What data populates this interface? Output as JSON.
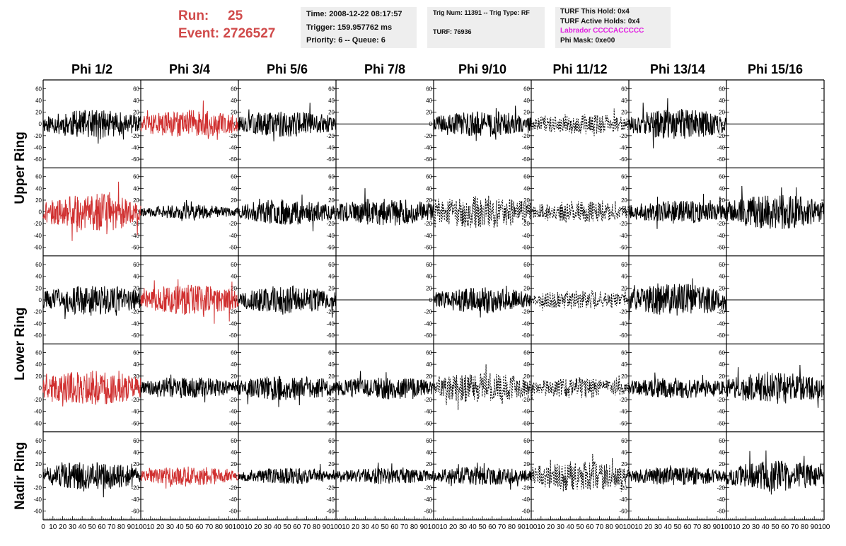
{
  "header": {
    "run_label": "Run:",
    "run_value": "25",
    "event_label": "Event:",
    "event_value": "2726527",
    "time": "Time: 2008-12-22 08:17:57",
    "trigger": "Trigger: 159.957762 ms",
    "priority": "Priority: 6 -- Queue: 6",
    "trig_num": "Trig Num: 11391 -- Trig Type: RF",
    "turf": "TURF: 76936",
    "turf_hold": "TURF This Hold: 0x4",
    "turf_active": "TURF Active Holds: 0x4",
    "labrador": "Labrador CCCCACCCCC",
    "phi_mask": "Phi Mask: 0xe00",
    "run_color": "#d04a4a",
    "labrador_color": "#e020e0"
  },
  "chart_data": {
    "type": "line",
    "columns": [
      "Phi 1/2",
      "Phi 3/4",
      "Phi 5/6",
      "Phi 7/8",
      "Phi 9/10",
      "Phi 11/12",
      "Phi 13/14",
      "Phi 15/16"
    ],
    "rows": [
      "Upper Ring",
      "Lower Ring",
      "Nadir Ring"
    ],
    "xlim": [
      0,
      100
    ],
    "ylim": [
      -70,
      70
    ],
    "x_ticks": [
      "0",
      "10",
      "20",
      "30",
      "40",
      "50",
      "60",
      "70",
      "80",
      "90",
      "100"
    ],
    "y_ticks": [
      "-60",
      "-40",
      "-20",
      "0",
      "20",
      "40",
      "60"
    ],
    "series_colors": {
      "normal": "#000000",
      "highlight": "#d03030"
    },
    "waveforms": [
      {
        "row": 0,
        "col": 0,
        "style": "solid",
        "color": "#000000",
        "amp": 24,
        "seed": 11
      },
      {
        "row": 0,
        "col": 1,
        "style": "solid",
        "color": "#d03030",
        "amp": 24,
        "seed": 12
      },
      {
        "row": 0,
        "col": 2,
        "style": "solid",
        "color": "#000000",
        "amp": 22,
        "seed": 13
      },
      {
        "row": 0,
        "col": 3,
        "style": "flat",
        "color": "#000000",
        "amp": 0,
        "seed": 14
      },
      {
        "row": 0,
        "col": 4,
        "style": "solid",
        "color": "#000000",
        "amp": 22,
        "seed": 15
      },
      {
        "row": 0,
        "col": 5,
        "style": "dashed",
        "color": "#000000",
        "amp": 18,
        "seed": 16
      },
      {
        "row": 0,
        "col": 6,
        "style": "solid",
        "color": "#000000",
        "amp": 26,
        "seed": 17
      },
      {
        "row": 0,
        "col": 7,
        "style": "flat",
        "color": "#000000",
        "amp": 0,
        "seed": 18
      },
      {
        "row": 1,
        "col": 0,
        "style": "solid",
        "color": "#d03030",
        "amp": 32,
        "seed": 21
      },
      {
        "row": 1,
        "col": 1,
        "style": "solid",
        "color": "#000000",
        "amp": 12,
        "seed": 22
      },
      {
        "row": 1,
        "col": 2,
        "style": "solid",
        "color": "#000000",
        "amp": 22,
        "seed": 23
      },
      {
        "row": 1,
        "col": 3,
        "style": "solid",
        "color": "#000000",
        "amp": 24,
        "seed": 24
      },
      {
        "row": 1,
        "col": 4,
        "style": "dashed",
        "color": "#000000",
        "amp": 28,
        "seed": 25
      },
      {
        "row": 1,
        "col": 5,
        "style": "dashed",
        "color": "#000000",
        "amp": 18,
        "seed": 26
      },
      {
        "row": 1,
        "col": 6,
        "style": "solid",
        "color": "#000000",
        "amp": 20,
        "seed": 27
      },
      {
        "row": 1,
        "col": 7,
        "style": "solid",
        "color": "#000000",
        "amp": 30,
        "seed": 28
      },
      {
        "row": 2,
        "col": 0,
        "style": "solid",
        "color": "#000000",
        "amp": 26,
        "seed": 31
      },
      {
        "row": 2,
        "col": 1,
        "style": "solid",
        "color": "#d03030",
        "amp": 26,
        "seed": 32
      },
      {
        "row": 2,
        "col": 2,
        "style": "solid",
        "color": "#000000",
        "amp": 24,
        "seed": 33
      },
      {
        "row": 2,
        "col": 3,
        "style": "flat",
        "color": "#000000",
        "amp": 0,
        "seed": 34
      },
      {
        "row": 2,
        "col": 4,
        "style": "solid",
        "color": "#000000",
        "amp": 22,
        "seed": 35
      },
      {
        "row": 2,
        "col": 5,
        "style": "dashed",
        "color": "#000000",
        "amp": 16,
        "seed": 36
      },
      {
        "row": 2,
        "col": 6,
        "style": "solid",
        "color": "#000000",
        "amp": 28,
        "seed": 37
      },
      {
        "row": 2,
        "col": 7,
        "style": "flat",
        "color": "#000000",
        "amp": 0,
        "seed": 38
      },
      {
        "row": 3,
        "col": 0,
        "style": "solid",
        "color": "#d03030",
        "amp": 30,
        "seed": 41
      },
      {
        "row": 3,
        "col": 1,
        "style": "solid",
        "color": "#000000",
        "amp": 18,
        "seed": 42
      },
      {
        "row": 3,
        "col": 2,
        "style": "solid",
        "color": "#000000",
        "amp": 22,
        "seed": 43
      },
      {
        "row": 3,
        "col": 3,
        "style": "solid",
        "color": "#000000",
        "amp": 20,
        "seed": 44
      },
      {
        "row": 3,
        "col": 4,
        "style": "dashed",
        "color": "#000000",
        "amp": 26,
        "seed": 45
      },
      {
        "row": 3,
        "col": 5,
        "style": "dashed",
        "color": "#000000",
        "amp": 18,
        "seed": 46
      },
      {
        "row": 3,
        "col": 6,
        "style": "solid",
        "color": "#000000",
        "amp": 18,
        "seed": 47
      },
      {
        "row": 3,
        "col": 7,
        "style": "solid",
        "color": "#000000",
        "amp": 28,
        "seed": 48
      },
      {
        "row": 4,
        "col": 0,
        "style": "solid",
        "color": "#000000",
        "amp": 24,
        "seed": 51
      },
      {
        "row": 4,
        "col": 1,
        "style": "solid",
        "color": "#d03030",
        "amp": 16,
        "seed": 52
      },
      {
        "row": 4,
        "col": 2,
        "style": "solid",
        "color": "#000000",
        "amp": 14,
        "seed": 53
      },
      {
        "row": 4,
        "col": 3,
        "style": "solid",
        "color": "#000000",
        "amp": 14,
        "seed": 54
      },
      {
        "row": 4,
        "col": 4,
        "style": "solid",
        "color": "#000000",
        "amp": 16,
        "seed": 55
      },
      {
        "row": 4,
        "col": 5,
        "style": "dashed",
        "color": "#000000",
        "amp": 26,
        "seed": 56
      },
      {
        "row": 4,
        "col": 6,
        "style": "solid",
        "color": "#000000",
        "amp": 16,
        "seed": 57
      },
      {
        "row": 4,
        "col": 7,
        "style": "solid",
        "color": "#000000",
        "amp": 26,
        "seed": 58
      }
    ]
  }
}
